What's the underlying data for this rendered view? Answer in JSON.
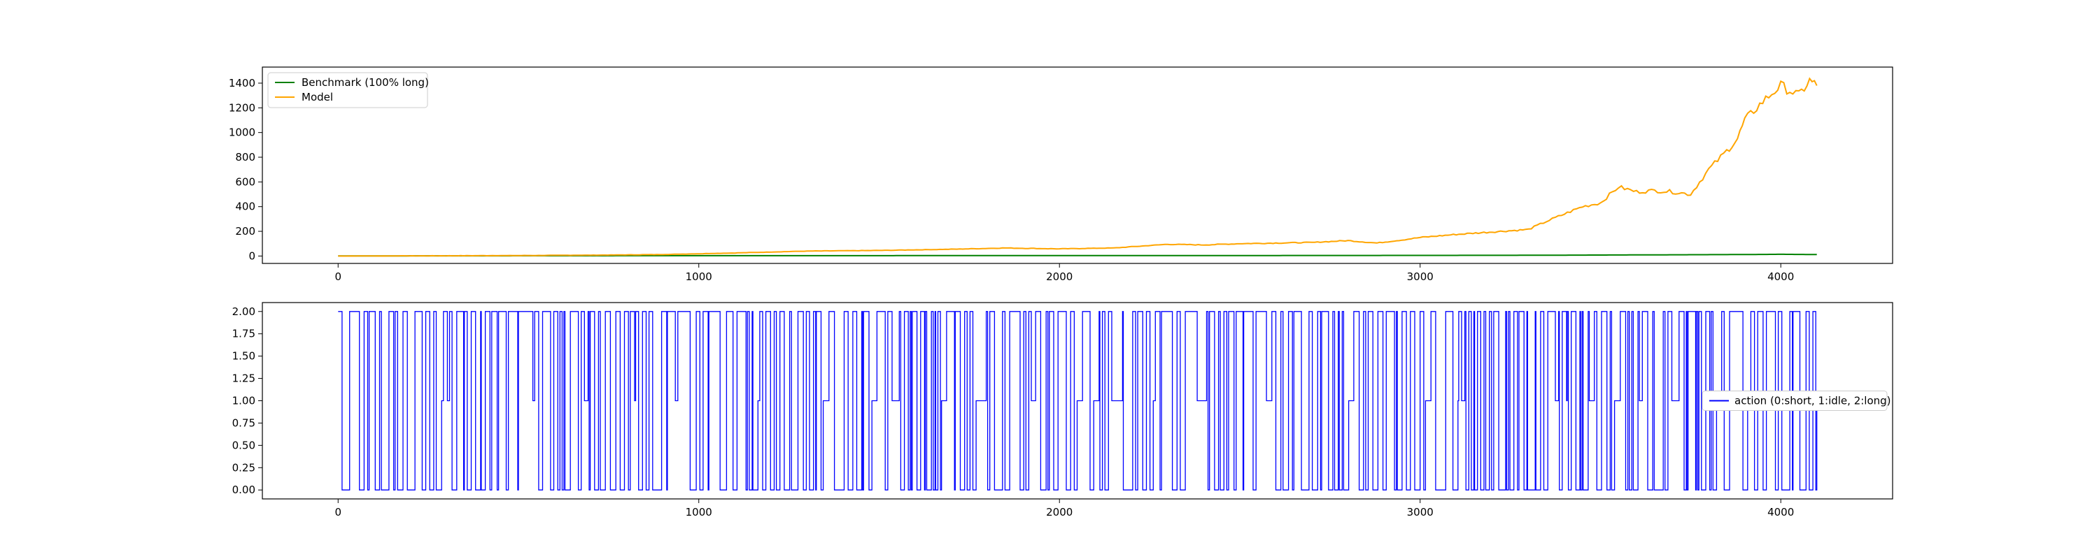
{
  "chart_data": [
    {
      "type": "line",
      "title": "",
      "xlabel": "",
      "ylabel": "",
      "xlim": [
        -210,
        4310
      ],
      "ylim": [
        -60,
        1530
      ],
      "xticks": [
        0,
        1000,
        2000,
        3000,
        4000
      ],
      "yticks": [
        0,
        200,
        400,
        600,
        800,
        1000,
        1200,
        1400
      ],
      "grid": false,
      "legend_position": "upper left",
      "series": [
        {
          "name": "Benchmark (100% long)",
          "color": "#008000",
          "x": [
            0,
            500,
            1000,
            1500,
            2000,
            2500,
            3000,
            3300,
            3500,
            3700,
            3900,
            4000,
            4100
          ],
          "y": [
            1,
            2,
            3,
            3,
            4,
            4,
            5,
            6,
            8,
            10,
            12,
            14,
            12
          ]
        },
        {
          "name": "Model",
          "color": "#FFA500",
          "x": [
            0,
            300,
            500,
            700,
            900,
            1100,
            1300,
            1500,
            1700,
            1850,
            2000,
            2150,
            2200,
            2300,
            2400,
            2500,
            2600,
            2700,
            2800,
            2880,
            2950,
            3000,
            3100,
            3200,
            3300,
            3350,
            3400,
            3450,
            3500,
            3550,
            3600,
            3650,
            3700,
            3750,
            3800,
            3850,
            3880,
            3900,
            3950,
            4000,
            4050,
            4080,
            4100
          ],
          "y": [
            0,
            2,
            4,
            7,
            12,
            25,
            40,
            45,
            55,
            65,
            58,
            65,
            75,
            95,
            90,
            100,
            105,
            110,
            125,
            105,
            130,
            150,
            175,
            195,
            215,
            280,
            340,
            400,
            430,
            560,
            520,
            530,
            520,
            500,
            700,
            850,
            950,
            1100,
            1250,
            1380,
            1300,
            1420,
            1380
          ]
        }
      ]
    },
    {
      "type": "line",
      "title": "",
      "xlabel": "",
      "ylabel": "",
      "xlim": [
        -210,
        4310
      ],
      "ylim": [
        -0.1,
        2.1
      ],
      "xticks": [
        0,
        1000,
        2000,
        3000,
        4000
      ],
      "yticks": [
        "0.00",
        "0.25",
        "0.50",
        "0.75",
        "1.00",
        "1.25",
        "1.50",
        "1.75",
        "2.00"
      ],
      "grid": false,
      "legend_position": "center right",
      "series": [
        {
          "name": "action (0:short, 1:idle, 2:long)",
          "color": "#0000FF",
          "x_start": 0,
          "x_end": 4100,
          "dominant_values": [
            0,
            2
          ],
          "occasional_value": 1
        }
      ]
    }
  ]
}
